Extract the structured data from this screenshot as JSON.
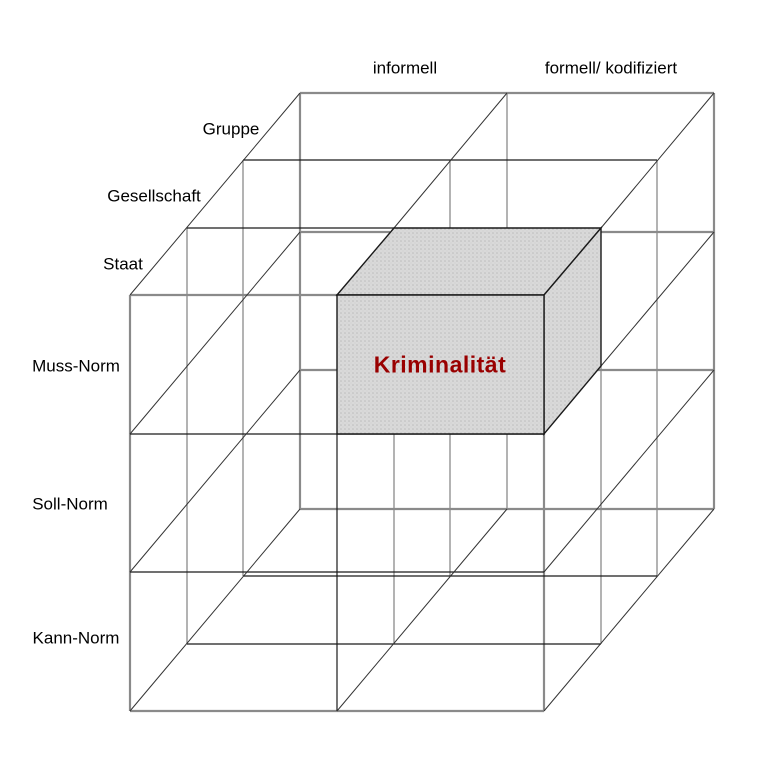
{
  "diagram": {
    "type": "3d-cube-lattice",
    "axes": {
      "columns": {
        "labels": [
          "informell",
          "formell/ kodifiziert"
        ]
      },
      "rows": {
        "labels": [
          "Muss-Norm",
          "Soll-Norm",
          "Kann-Norm"
        ]
      },
      "depth": {
        "labels": [
          "Gruppe",
          "Gesellschaft",
          "Staat"
        ]
      }
    },
    "highlight": {
      "label": "Kriminalität",
      "row": "Muss-Norm",
      "column": "formell/ kodifiziert",
      "depth": "Staat",
      "fill_color": "#d9d9d9",
      "dot_color": "#bcbcbc",
      "edge_color": "#1a1a1a",
      "text_color": "#990000"
    },
    "colors": {
      "background": "#ffffff",
      "line_gray": "#8a8a8a",
      "line_black": "#1a1a1a",
      "diagonal": "#333333",
      "label_text": "#000000"
    }
  }
}
